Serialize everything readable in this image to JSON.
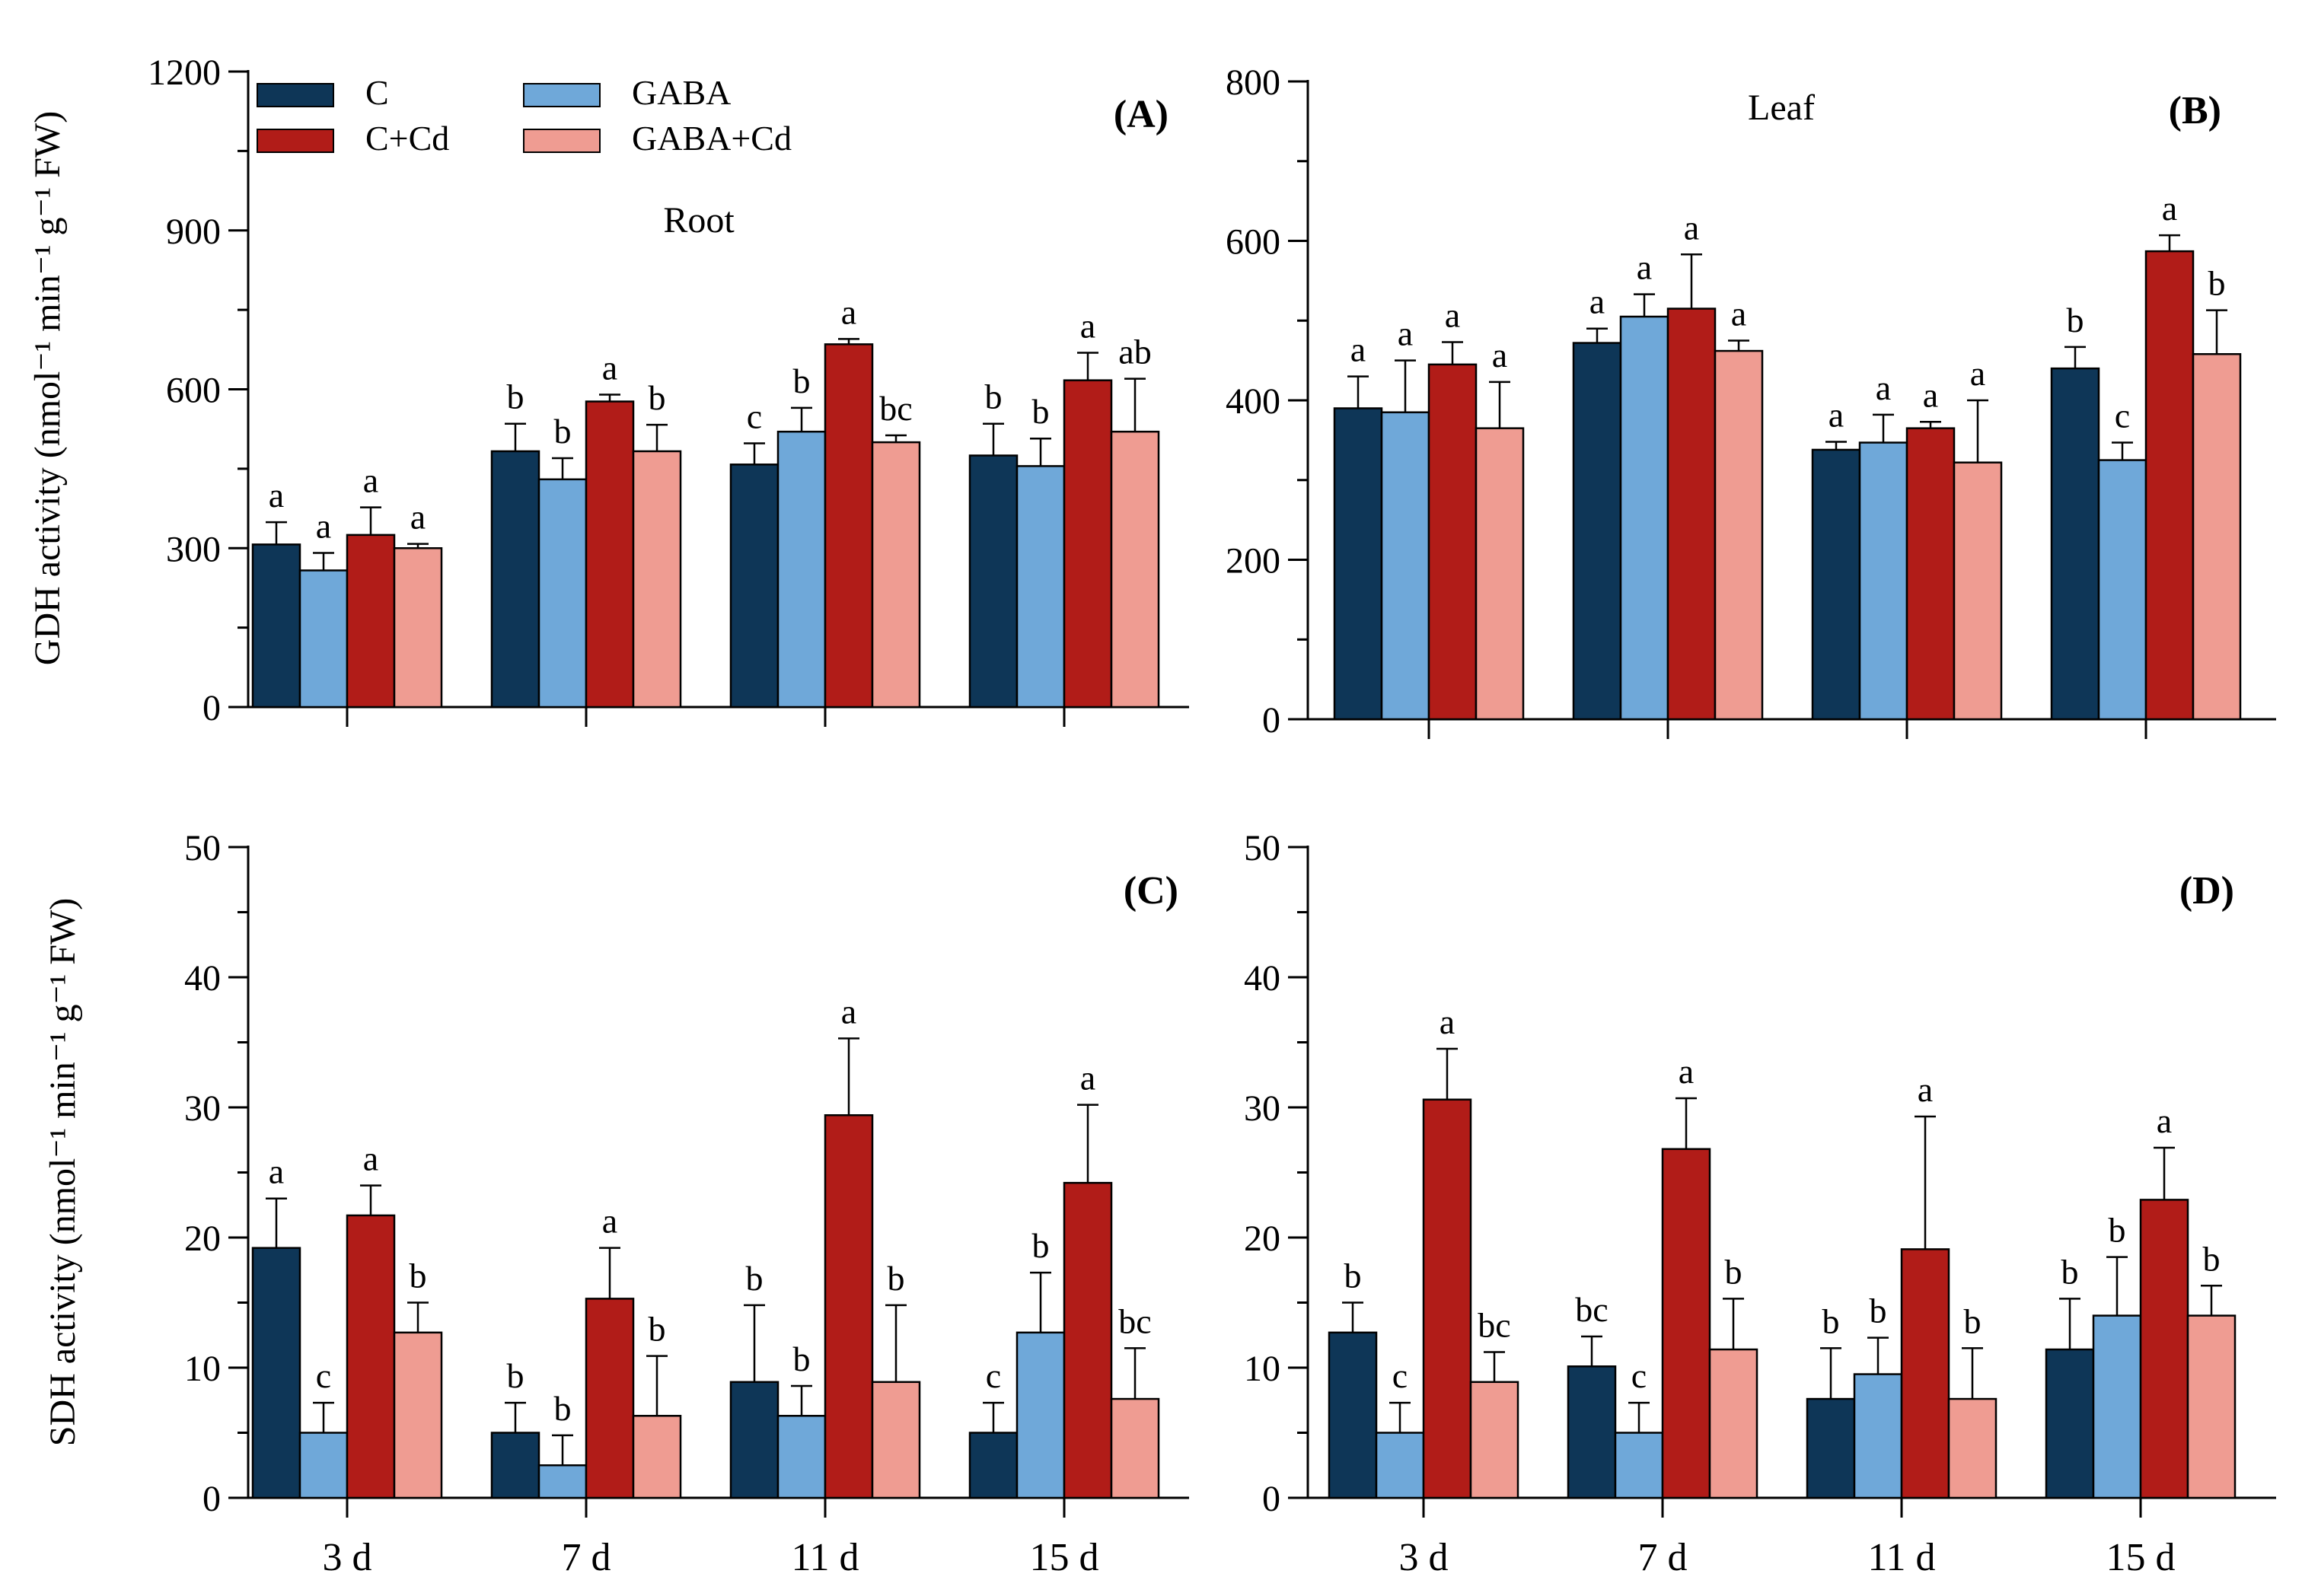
{
  "legend": {
    "items": [
      {
        "label": "C",
        "color": "#0e3657"
      },
      {
        "label": "C+Cd",
        "color": "#b11c18"
      },
      {
        "label": "GABA",
        "color": "#6fa8d9"
      },
      {
        "label": "GABA+Cd",
        "color": "#ef9c92"
      }
    ]
  },
  "colors": {
    "C": "#0e3657",
    "GABA": "#6fa8d9",
    "C+Cd": "#b11c18",
    "GABA+Cd": "#ef9c92"
  },
  "chart_data": [
    {
      "id": "A",
      "type": "bar",
      "panel_label": "(A)",
      "subtitle": "Root",
      "ylabel": "GDH activity (nmol⁻¹ min⁻¹ g⁻¹ FW)",
      "ylim": [
        0,
        1200
      ],
      "yticks": [
        0,
        300,
        600,
        900,
        1200
      ],
      "categories": [
        "3 d",
        "7 d",
        "11 d",
        "15 d"
      ],
      "show_xticklabels": false,
      "series": [
        {
          "name": "C",
          "values": [
            307,
            483,
            458,
            475
          ],
          "errors": [
            42,
            52,
            40,
            60
          ],
          "letters": [
            "a",
            "b",
            "c",
            "b"
          ]
        },
        {
          "name": "GABA",
          "values": [
            258,
            430,
            520,
            455
          ],
          "errors": [
            33,
            40,
            45,
            52
          ],
          "letters": [
            "a",
            "b",
            "b",
            "b"
          ]
        },
        {
          "name": "C+Cd",
          "values": [
            325,
            577,
            685,
            617
          ],
          "errors": [
            52,
            13,
            10,
            52
          ],
          "letters": [
            "a",
            "a",
            "a",
            "a"
          ]
        },
        {
          "name": "GABA+Cd",
          "values": [
            300,
            483,
            500,
            520
          ],
          "errors": [
            8,
            50,
            13,
            100
          ],
          "letters": [
            "a",
            "b",
            "bc",
            "ab"
          ]
        }
      ]
    },
    {
      "id": "B",
      "type": "bar",
      "panel_label": "(B)",
      "subtitle": "Leaf",
      "ylabel": "",
      "ylim": [
        0,
        800
      ],
      "yticks": [
        0,
        200,
        400,
        600,
        800
      ],
      "categories": [
        "3 d",
        "7 d",
        "11 d",
        "15 d"
      ],
      "show_xticklabels": false,
      "series": [
        {
          "name": "C",
          "values": [
            390,
            472,
            338,
            440
          ],
          "errors": [
            40,
            18,
            10,
            27
          ],
          "letters": [
            "a",
            "a",
            "a",
            "b"
          ]
        },
        {
          "name": "GABA",
          "values": [
            385,
            505,
            347,
            325
          ],
          "errors": [
            65,
            28,
            35,
            22
          ],
          "letters": [
            "a",
            "a",
            "a",
            "c"
          ]
        },
        {
          "name": "C+Cd",
          "values": [
            445,
            515,
            365,
            587
          ],
          "errors": [
            28,
            68,
            8,
            20
          ],
          "letters": [
            "a",
            "a",
            "a",
            "a"
          ]
        },
        {
          "name": "GABA+Cd",
          "values": [
            365,
            462,
            322,
            458
          ],
          "errors": [
            58,
            13,
            78,
            55
          ],
          "letters": [
            "a",
            "a",
            "a",
            "b"
          ]
        }
      ]
    },
    {
      "id": "C",
      "type": "bar",
      "panel_label": "(C)",
      "subtitle": "",
      "ylabel": "SDH activity (nmol⁻¹ min⁻¹ g⁻¹ FW)",
      "ylim": [
        0,
        50
      ],
      "yticks": [
        0,
        10,
        20,
        30,
        40,
        50
      ],
      "categories": [
        "3 d",
        "7 d",
        "11 d",
        "15 d"
      ],
      "show_xticklabels": true,
      "series": [
        {
          "name": "C",
          "values": [
            19.2,
            5.0,
            8.9,
            5.0
          ],
          "errors": [
            3.8,
            2.3,
            5.9,
            2.3
          ],
          "letters": [
            "a",
            "b",
            "b",
            "c"
          ]
        },
        {
          "name": "GABA",
          "values": [
            5.0,
            2.5,
            6.3,
            12.7
          ],
          "errors": [
            2.3,
            2.3,
            2.3,
            4.6
          ],
          "letters": [
            "c",
            "b",
            "b",
            "b"
          ]
        },
        {
          "name": "C+Cd",
          "values": [
            21.7,
            15.3,
            29.4,
            24.2
          ],
          "errors": [
            2.3,
            3.9,
            5.9,
            6.0
          ],
          "letters": [
            "a",
            "a",
            "a",
            "a"
          ]
        },
        {
          "name": "GABA+Cd",
          "values": [
            12.7,
            6.3,
            8.9,
            7.6
          ],
          "errors": [
            2.3,
            4.6,
            5.9,
            3.9
          ],
          "letters": [
            "b",
            "b",
            "b",
            "bc"
          ]
        }
      ]
    },
    {
      "id": "D",
      "type": "bar",
      "panel_label": "(D)",
      "subtitle": "",
      "ylabel": "",
      "ylim": [
        0,
        50
      ],
      "yticks": [
        0,
        10,
        20,
        30,
        40,
        50
      ],
      "categories": [
        "3 d",
        "7 d",
        "11 d",
        "15 d"
      ],
      "show_xticklabels": true,
      "series": [
        {
          "name": "C",
          "values": [
            12.7,
            10.1,
            7.6,
            11.4
          ],
          "errors": [
            2.3,
            2.3,
            3.9,
            3.9
          ],
          "letters": [
            "b",
            "bc",
            "b",
            "b"
          ]
        },
        {
          "name": "GABA",
          "values": [
            5.0,
            5.0,
            9.5,
            14.0
          ],
          "errors": [
            2.3,
            2.3,
            2.8,
            4.5
          ],
          "letters": [
            "c",
            "c",
            "b",
            "b"
          ]
        },
        {
          "name": "C+Cd",
          "values": [
            30.6,
            26.8,
            19.1,
            22.9
          ],
          "errors": [
            3.9,
            3.9,
            10.2,
            4.0
          ],
          "letters": [
            "a",
            "a",
            "a",
            "a"
          ]
        },
        {
          "name": "GABA+Cd",
          "values": [
            8.9,
            11.4,
            7.6,
            14.0
          ],
          "errors": [
            2.3,
            3.9,
            3.9,
            2.3
          ],
          "letters": [
            "bc",
            "b",
            "b",
            "b"
          ]
        }
      ]
    }
  ]
}
